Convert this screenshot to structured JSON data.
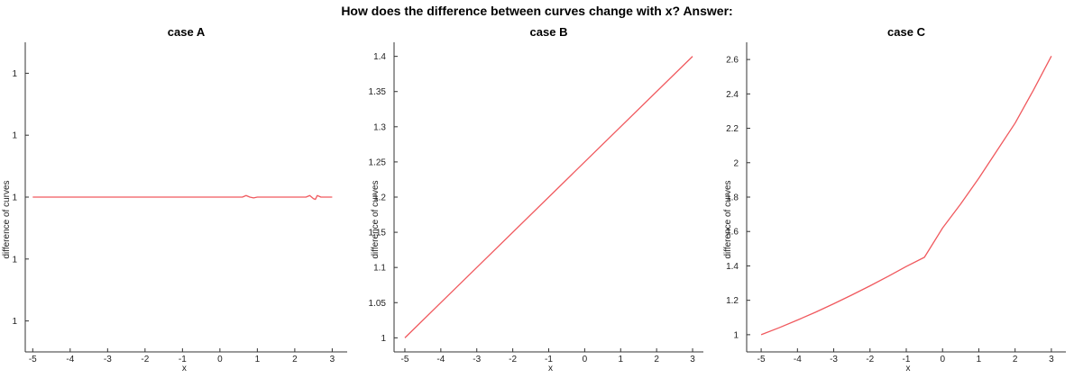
{
  "figure": {
    "title": "How does the difference between curves change with x? Answer:"
  },
  "chart_data": [
    {
      "type": "line",
      "title": "case A",
      "xlabel": "x",
      "ylabel": "difference of curves",
      "xlim": [
        -5.2,
        3.4
      ],
      "ylim": [
        0.99,
        1.01
      ],
      "xticks": [
        -5,
        -4,
        -3,
        -2,
        -1,
        0,
        1,
        2,
        3
      ],
      "yticks": [
        0.992,
        0.996,
        1.0,
        1.004,
        1.008
      ],
      "ytick_labels": [
        "1",
        "1",
        "1",
        "1",
        "1"
      ],
      "grid": false,
      "series": [
        {
          "color": "#f0595e",
          "x": [
            -5,
            -4,
            -3,
            -2,
            -1,
            0,
            0.5,
            0.6,
            0.7,
            0.8,
            0.9,
            1.0,
            1.5,
            2.0,
            2.3,
            2.4,
            2.5,
            2.55,
            2.6,
            2.7,
            3
          ],
          "y": [
            1.0,
            1.0,
            1.0,
            1.0,
            1.0,
            1.0,
            1.0,
            1.0,
            1.0001,
            1.0,
            0.99995,
            1.0,
            1.0,
            1.0,
            1.0,
            1.0001,
            0.9999,
            0.99985,
            1.0001,
            1.0,
            1.0
          ]
        }
      ]
    },
    {
      "type": "line",
      "title": "case B",
      "xlabel": "x",
      "ylabel": "difference of curves",
      "xlim": [
        -5.3,
        3.3
      ],
      "ylim": [
        0.98,
        1.42
      ],
      "xticks": [
        -5,
        -4,
        -3,
        -2,
        -1,
        0,
        1,
        2,
        3
      ],
      "yticks": [
        1,
        1.05,
        1.1,
        1.15,
        1.2,
        1.25,
        1.3,
        1.35,
        1.4
      ],
      "ytick_labels": [
        "1",
        "1.05",
        "1.1",
        "1.15",
        "1.2",
        "1.25",
        "1.3",
        "1.35",
        "1.4"
      ],
      "grid": false,
      "series": [
        {
          "color": "#f0595e",
          "x": [
            -5,
            3
          ],
          "y": [
            1.0,
            1.4
          ]
        }
      ]
    },
    {
      "type": "line",
      "title": "case C",
      "xlabel": "x",
      "ylabel": "difference of curves",
      "xlim": [
        -5.4,
        3.4
      ],
      "ylim": [
        0.9,
        2.7
      ],
      "xticks": [
        -5,
        -4,
        -3,
        -2,
        -1,
        0,
        1,
        2,
        3
      ],
      "yticks": [
        1,
        1.2,
        1.4,
        1.6,
        1.8,
        2,
        2.2,
        2.4,
        2.6
      ],
      "ytick_labels": [
        "1",
        "1.2",
        "1.4",
        "1.6",
        "1.8",
        "2",
        "2.2",
        "2.4",
        "2.6"
      ],
      "grid": false,
      "series": [
        {
          "color": "#f0595e",
          "x": [
            -5,
            -4.5,
            -4,
            -3.5,
            -3,
            -2.5,
            -2,
            -1.5,
            -1,
            -0.5,
            0,
            0.5,
            1,
            1.5,
            2,
            2.5,
            3
          ],
          "y": [
            1.0,
            1.041,
            1.085,
            1.131,
            1.18,
            1.231,
            1.284,
            1.339,
            1.397,
            1.45,
            1.62,
            1.76,
            1.91,
            2.07,
            2.23,
            2.42,
            2.62
          ]
        }
      ]
    }
  ]
}
